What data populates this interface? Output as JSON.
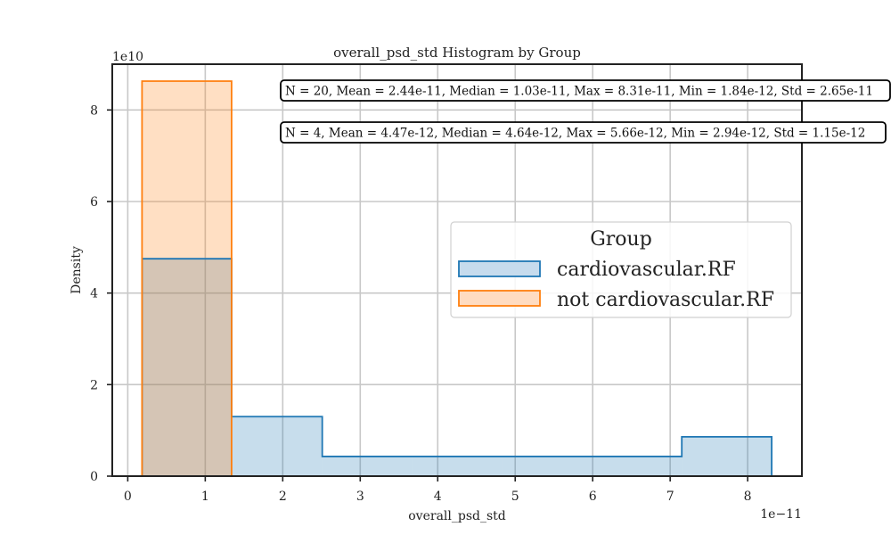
{
  "chart_data": {
    "type": "histogram",
    "title": "overall_psd_std Histogram by Group",
    "xlabel": "overall_psd_std",
    "ylabel": "Density",
    "x_offset_label": "1e−11",
    "y_offset_label": "1e10",
    "xlim": [
      -0.2,
      8.7
    ],
    "ylim": [
      0,
      9.0
    ],
    "x_unit_scale": "1e-11",
    "y_unit_scale": "1e10",
    "x_ticks": [
      0,
      1,
      2,
      3,
      4,
      5,
      6,
      7,
      8
    ],
    "y_ticks": [
      0,
      2,
      4,
      6,
      8
    ],
    "grid": true,
    "legend_position": "center-right",
    "legend_title": "Group",
    "series": [
      {
        "name": "cardiovascular.RF",
        "color": "#1f77b4",
        "fill": "#c6dbed",
        "bins": [
          {
            "x0": 0.184,
            "x1": 1.34,
            "density": 4.75
          },
          {
            "x0": 1.34,
            "x1": 2.51,
            "density": 1.3
          },
          {
            "x0": 2.51,
            "x1": 3.67,
            "density": 0.43
          },
          {
            "x0": 3.67,
            "x1": 4.83,
            "density": 0.43
          },
          {
            "x0": 4.83,
            "x1": 5.99,
            "density": 0.43
          },
          {
            "x0": 5.99,
            "x1": 7.15,
            "density": 0.43
          },
          {
            "x0": 7.15,
            "x1": 8.31,
            "density": 0.86
          }
        ],
        "stats": "N = 20, Mean = 2.44e-11, Median = 1.03e-11, Max = 8.31e-11, Min = 1.84e-12, Std = 2.65e-11"
      },
      {
        "name": "not cardiovascular.RF",
        "color": "#ff7f0e",
        "fill": "#ffdcc1",
        "bins": [
          {
            "x0": 0.184,
            "x1": 1.34,
            "density": 8.63
          }
        ],
        "stats": "N = 4, Mean = 4.47e-12, Median = 4.64e-12, Max = 5.66e-12, Min = 2.94e-12, Std = 1.15e-12"
      }
    ]
  }
}
